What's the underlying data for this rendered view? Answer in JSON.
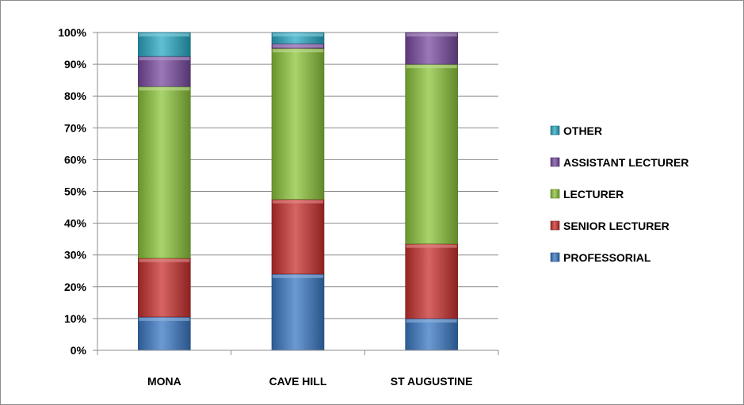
{
  "chart_data": {
    "type": "bar",
    "stacked": true,
    "percent_stacked": true,
    "categories": [
      "MONA",
      "CAVE HILL",
      "ST AUGUSTINE"
    ],
    "series": [
      {
        "name": "PROFESSORIAL",
        "values": [
          10.5,
          24,
          10
        ],
        "color": "#3a78c4"
      },
      {
        "name": "SENIOR LECTURER",
        "values": [
          18.5,
          23.5,
          23.5
        ],
        "color": "#c8302e"
      },
      {
        "name": "LECTURER",
        "values": [
          54,
          47.5,
          56.5
        ],
        "color": "#8cc43a"
      },
      {
        "name": "ASSISTANT LECTURER",
        "values": [
          9.5,
          1.5,
          10
        ],
        "color": "#7a4ba0"
      },
      {
        "name": "OTHER",
        "values": [
          7.5,
          3.5,
          0
        ],
        "color": "#2aa9c4"
      }
    ],
    "y_ticks": [
      "0%",
      "10%",
      "20%",
      "30%",
      "40%",
      "50%",
      "60%",
      "70%",
      "80%",
      "90%",
      "100%"
    ],
    "ylim": [
      0,
      100
    ],
    "grid": true,
    "legend": "right",
    "legend_order": [
      "OTHER",
      "ASSISTANT LECTURER",
      "LECTURER",
      "SENIOR LECTURER",
      "PROFESSORIAL"
    ]
  }
}
